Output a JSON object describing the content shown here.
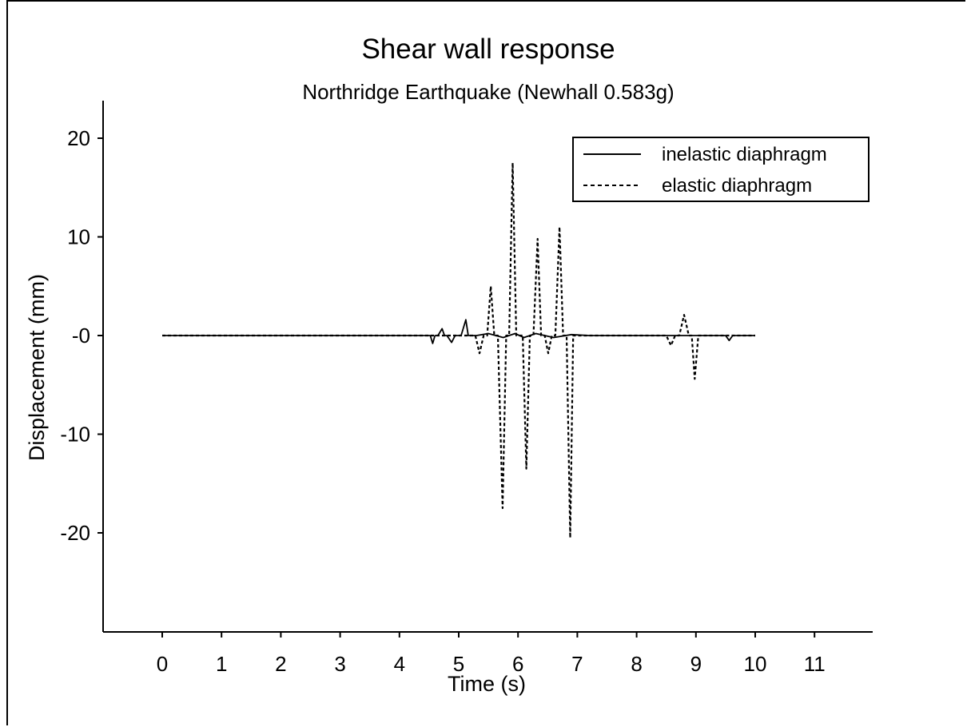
{
  "chart_data": {
    "type": "line",
    "title": "Shear wall response",
    "subtitle": "Northridge Earthquake (Newhall 0.583g)",
    "xlabel": "Time (s)",
    "ylabel": "Displacement  (mm)",
    "xlim": [
      -1,
      12.2
    ],
    "ylim": [
      -30,
      24
    ],
    "x_ticks": [
      0,
      1,
      2,
      3,
      4,
      5,
      6,
      7,
      8,
      9,
      10,
      11
    ],
    "x_tick_labels": [
      "0",
      "1",
      "2",
      "3",
      "4",
      "5",
      "6",
      "7",
      "8",
      "9",
      "10",
      "11"
    ],
    "y_ticks": [
      20,
      10,
      0,
      -10,
      -20
    ],
    "y_tick_labels": [
      "20",
      "10",
      "-0",
      "-10",
      "-20"
    ],
    "grid": false,
    "legend_position": "top-right",
    "series": [
      {
        "name": "inelastic diaphragm",
        "style": "solid",
        "x": [
          0,
          4.4,
          4.52,
          4.56,
          4.6,
          4.65,
          4.72,
          4.76,
          4.8,
          4.88,
          4.94,
          4.98,
          5.04,
          5.12,
          5.16,
          5.22,
          5.3,
          5.5,
          5.75,
          5.95,
          6.1,
          6.3,
          6.6,
          6.9,
          7.2,
          7.6,
          8.0,
          8.4,
          8.8,
          9.2,
          9.5,
          9.56,
          9.62,
          9.7,
          10.0
        ],
        "y": [
          0,
          0,
          0,
          -0.8,
          0,
          0,
          0.7,
          0,
          0,
          -0.7,
          0,
          0,
          0,
          1.6,
          0,
          0,
          0,
          0.2,
          -0.2,
          0.2,
          -0.2,
          0.2,
          -0.2,
          0.1,
          0,
          0,
          0,
          0,
          0,
          0,
          0,
          -0.5,
          0,
          0,
          0
        ]
      },
      {
        "name": "elastic diaphragm",
        "style": "dashed",
        "x": [
          0,
          5.2,
          5.28,
          5.35,
          5.42,
          5.48,
          5.54,
          5.6,
          5.66,
          5.74,
          5.8,
          5.85,
          5.91,
          5.97,
          6.03,
          6.08,
          6.14,
          6.2,
          6.26,
          6.33,
          6.39,
          6.45,
          6.51,
          6.57,
          6.63,
          6.7,
          6.76,
          6.82,
          6.88,
          6.93,
          6.99,
          7.05,
          7.2,
          8.5,
          8.58,
          8.65,
          8.72,
          8.8,
          8.88,
          8.93,
          8.98,
          9.04,
          9.1,
          10.0
        ],
        "y": [
          0,
          0,
          0,
          -1.8,
          0,
          0,
          5.0,
          0,
          0,
          -17.5,
          0,
          0,
          17.5,
          0,
          0,
          0,
          -13.5,
          0,
          0,
          9.8,
          0,
          0,
          -1.8,
          0,
          0,
          11.0,
          0,
          0,
          -20.5,
          0,
          0,
          0,
          0,
          0,
          -1.0,
          0,
          0,
          2.1,
          0,
          0,
          -4.4,
          0,
          0,
          0
        ]
      }
    ]
  }
}
